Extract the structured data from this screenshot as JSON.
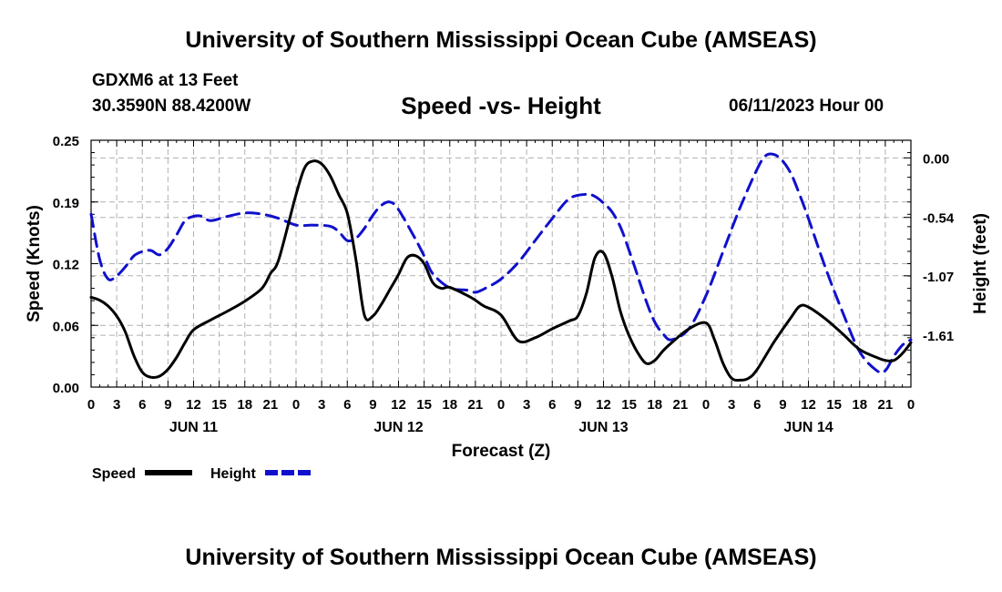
{
  "header": {
    "title": "University of Southern Mississippi Ocean Cube (AMSEAS)",
    "station": "GDXM6 at 13 Feet",
    "coordinates": "30.3590N  88.4200W",
    "subtitle": "Speed -vs- Height",
    "datetime": "06/11/2023 Hour 00"
  },
  "footer": {
    "title": "University of Southern Mississippi Ocean Cube (AMSEAS)"
  },
  "chart_data": {
    "type": "line",
    "title": "Speed -vs- Height",
    "xlabel": "Forecast (Z)",
    "ylabel": "Speed (Knots)",
    "y2label": "Height (feet)",
    "xlim": [
      0,
      96
    ],
    "ylim": [
      0,
      0.25
    ],
    "y2lim": [
      -2.08,
      0.16
    ],
    "grid": true,
    "x_tick_labels": [
      "0",
      "3",
      "6",
      "9",
      "12",
      "15",
      "18",
      "21",
      "0",
      "3",
      "6",
      "9",
      "12",
      "15",
      "18",
      "21",
      "0",
      "3",
      "6",
      "9",
      "12",
      "15",
      "18",
      "21",
      "0",
      "3",
      "6",
      "9",
      "12",
      "15",
      "18",
      "21",
      "0"
    ],
    "day_labels": [
      {
        "label": "JUN 11",
        "hour": 12
      },
      {
        "label": "JUN 12",
        "hour": 36
      },
      {
        "label": "JUN 13",
        "hour": 60
      },
      {
        "label": "JUN 14",
        "hour": 84
      }
    ],
    "y_ticks": [
      "0.00",
      "0.06",
      "0.12",
      "0.19",
      "0.25"
    ],
    "y_tick_values": [
      0,
      0.0625,
      0.125,
      0.1875,
      0.25
    ],
    "y2_ticks": [
      "0.00",
      "-0.54",
      "-1.07",
      "-1.61"
    ],
    "y2_tick_values": [
      0,
      -0.54,
      -1.07,
      -1.61
    ],
    "legend": {
      "position": "bottom-left",
      "entries": [
        "Speed",
        "Height"
      ]
    },
    "series": [
      {
        "name": "Speed",
        "color": "#000000",
        "dash": "solid",
        "axis": "left",
        "x": [
          0,
          1,
          2,
          3,
          4,
          5,
          6,
          7,
          8,
          9,
          10,
          11,
          12,
          14,
          16,
          18,
          20,
          21,
          22,
          24,
          25,
          26,
          27,
          28,
          29,
          30,
          31,
          32,
          33,
          34,
          35,
          36,
          37,
          38,
          39,
          40,
          41,
          42,
          44,
          45,
          46,
          48,
          50,
          52,
          54,
          56,
          57,
          58,
          59,
          60,
          61,
          62,
          63,
          64,
          65,
          66,
          67,
          68,
          70,
          72,
          73,
          74,
          75,
          76,
          77,
          78,
          80,
          82,
          83,
          84,
          86,
          88,
          90,
          92,
          93,
          94,
          95,
          96
        ],
        "values": [
          0.091,
          0.088,
          0.082,
          0.072,
          0.056,
          0.032,
          0.015,
          0.01,
          0.011,
          0.018,
          0.03,
          0.045,
          0.058,
          0.068,
          0.077,
          0.087,
          0.1,
          0.115,
          0.13,
          0.195,
          0.222,
          0.229,
          0.226,
          0.214,
          0.195,
          0.176,
          0.13,
          0.073,
          0.072,
          0.084,
          0.099,
          0.114,
          0.131,
          0.133,
          0.125,
          0.106,
          0.1,
          0.101,
          0.093,
          0.088,
          0.082,
          0.073,
          0.047,
          0.05,
          0.059,
          0.067,
          0.072,
          0.095,
          0.131,
          0.136,
          0.112,
          0.076,
          0.052,
          0.035,
          0.024,
          0.027,
          0.037,
          0.045,
          0.059,
          0.065,
          0.048,
          0.024,
          0.009,
          0.007,
          0.009,
          0.018,
          0.046,
          0.071,
          0.082,
          0.081,
          0.069,
          0.054,
          0.038,
          0.03,
          0.027,
          0.027,
          0.034,
          0.045
        ]
      },
      {
        "name": "Height",
        "color": "#1010cc",
        "dash": "dashed",
        "axis": "right",
        "x": [
          0,
          1,
          2,
          3,
          4,
          5,
          6,
          7,
          8,
          9,
          10,
          11,
          12,
          13,
          14,
          16,
          18,
          20,
          22,
          24,
          26,
          28,
          29,
          30,
          31,
          32,
          33,
          34,
          35,
          36,
          38,
          39,
          40,
          42,
          44,
          45,
          46,
          48,
          50,
          52,
          54,
          56,
          58,
          59,
          60,
          61,
          62,
          63,
          64,
          65,
          66,
          67,
          68,
          70,
          72,
          74,
          76,
          78,
          79,
          80,
          81,
          82,
          83,
          84,
          86,
          88,
          90,
          92,
          93,
          94,
          95,
          96
        ],
        "values": [
          -0.51,
          -0.92,
          -1.1,
          -1.07,
          -0.99,
          -0.89,
          -0.85,
          -0.84,
          -0.88,
          -0.82,
          -0.7,
          -0.57,
          -0.53,
          -0.53,
          -0.57,
          -0.53,
          -0.5,
          -0.51,
          -0.55,
          -0.61,
          -0.61,
          -0.62,
          -0.67,
          -0.75,
          -0.73,
          -0.64,
          -0.52,
          -0.43,
          -0.4,
          -0.47,
          -0.74,
          -0.89,
          -1.05,
          -1.18,
          -1.2,
          -1.22,
          -1.19,
          -1.1,
          -0.95,
          -0.75,
          -0.55,
          -0.37,
          -0.33,
          -0.35,
          -0.41,
          -0.49,
          -0.63,
          -0.84,
          -1.07,
          -1.3,
          -1.49,
          -1.6,
          -1.65,
          -1.55,
          -1.25,
          -0.85,
          -0.45,
          -0.1,
          0.02,
          0.03,
          -0.03,
          -0.15,
          -0.34,
          -0.55,
          -1.0,
          -1.4,
          -1.76,
          -1.93,
          -1.93,
          -1.8,
          -1.7,
          -1.65
        ]
      }
    ]
  }
}
